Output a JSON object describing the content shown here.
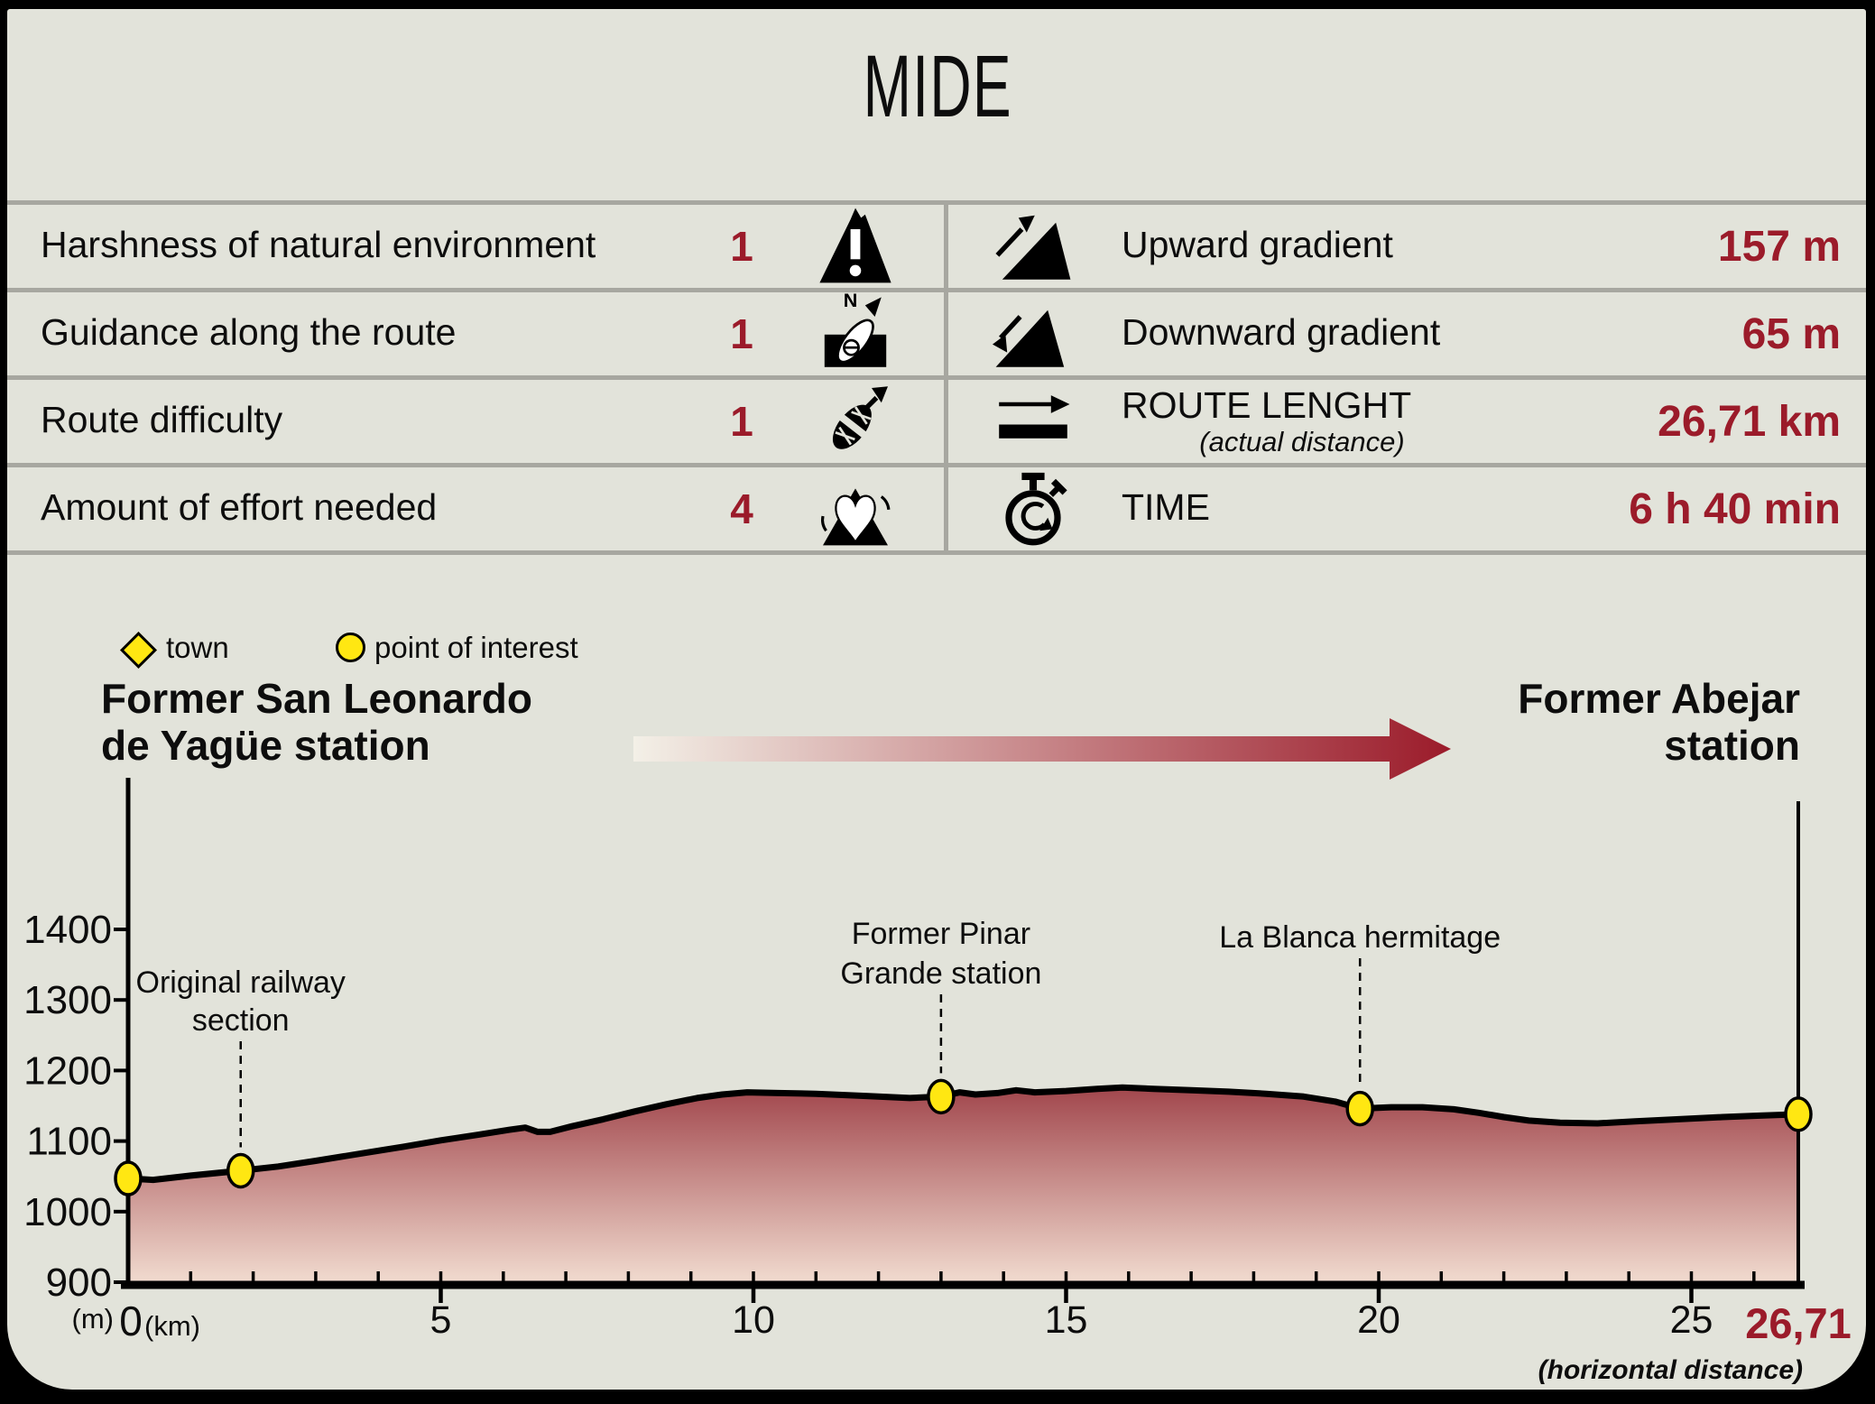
{
  "title": "MIDE",
  "colors": {
    "background": "#e2e3da",
    "accent_red": "#9b1b2a",
    "divider_gray": "#a7a7a0",
    "marker_yellow": "#ffe712",
    "profile_top": "#8b1d28",
    "profile_bottom": "#f2ddd1"
  },
  "table": {
    "left_rows": [
      {
        "label": "Harshness of natural environment",
        "value": "1",
        "icon": "warning-mountain-icon"
      },
      {
        "label": "Guidance along the route",
        "value": "1",
        "icon": "compass-icon"
      },
      {
        "label": "Route difficulty",
        "value": "1",
        "icon": "boot-icon"
      },
      {
        "label": "Amount of effort needed",
        "value": "4",
        "icon": "heart-mountain-icon"
      }
    ],
    "right_rows": [
      {
        "label": "Upward gradient",
        "value": "157 m",
        "icon": "ascending-slope-icon"
      },
      {
        "label": "Downward gradient",
        "value": "65 m",
        "icon": "descending-slope-icon"
      },
      {
        "label": "ROUTE LENGHT",
        "sublabel": "(actual distance)",
        "value": "26,71 km",
        "icon": "route-length-icon"
      },
      {
        "label": "TIME",
        "value": "6 h 40 min",
        "icon": "stopwatch-icon"
      }
    ]
  },
  "legend": {
    "town_label": "town",
    "poi_label": "point of interest"
  },
  "route": {
    "start_line1": "Former San Leonardo",
    "start_line2": "de Yagüe station",
    "end_line1": "Former Abejar",
    "end_line2": "station"
  },
  "chart_data": {
    "type": "area",
    "title": "Elevation profile of route from Former San Leonardo de Yagüe station to Former Abejar station",
    "ylabel_unit": "(m)",
    "xlabel_unit": "(km)",
    "x_origin_label": "0",
    "x_ticks": [
      5,
      10,
      15,
      20,
      25
    ],
    "x_end_label": "26,71",
    "y_ticks": [
      900,
      1000,
      1100,
      1200,
      1300,
      1400
    ],
    "xlim": [
      0,
      26.71
    ],
    "ylim": [
      900,
      1567
    ],
    "grid": false,
    "footnote": "(horizontal distance)",
    "profile": [
      [
        0,
        1047
      ],
      [
        0.4,
        1045
      ],
      [
        1,
        1051
      ],
      [
        1.8,
        1058
      ],
      [
        2.4,
        1064
      ],
      [
        3,
        1072
      ],
      [
        3.7,
        1082
      ],
      [
        4.4,
        1092
      ],
      [
        5,
        1101
      ],
      [
        5.6,
        1109
      ],
      [
        6.1,
        1116
      ],
      [
        6.35,
        1119
      ],
      [
        6.55,
        1113
      ],
      [
        6.75,
        1113
      ],
      [
        7.1,
        1121
      ],
      [
        7.6,
        1131
      ],
      [
        8.1,
        1142
      ],
      [
        8.6,
        1152
      ],
      [
        9.1,
        1161
      ],
      [
        9.5,
        1166
      ],
      [
        9.9,
        1169
      ],
      [
        10.4,
        1168
      ],
      [
        11,
        1167
      ],
      [
        11.8,
        1164
      ],
      [
        12.5,
        1161
      ],
      [
        13,
        1163
      ],
      [
        13.3,
        1169
      ],
      [
        13.55,
        1166
      ],
      [
        13.9,
        1168
      ],
      [
        14.2,
        1172
      ],
      [
        14.5,
        1169
      ],
      [
        15,
        1171
      ],
      [
        15.5,
        1174
      ],
      [
        15.9,
        1176
      ],
      [
        16.4,
        1174
      ],
      [
        17,
        1172
      ],
      [
        17.6,
        1170
      ],
      [
        18.2,
        1167
      ],
      [
        18.8,
        1163
      ],
      [
        19.3,
        1156
      ],
      [
        19.7,
        1146
      ],
      [
        20.2,
        1148
      ],
      [
        20.7,
        1148
      ],
      [
        21.2,
        1145
      ],
      [
        21.6,
        1140
      ],
      [
        22,
        1134
      ],
      [
        22.4,
        1129
      ],
      [
        22.9,
        1126
      ],
      [
        23.5,
        1125
      ],
      [
        24.1,
        1128
      ],
      [
        24.8,
        1131
      ],
      [
        25.5,
        1134
      ],
      [
        26.1,
        1136
      ],
      [
        26.71,
        1138
      ]
    ],
    "markers": [
      {
        "km": 0,
        "elevation": 1047,
        "type": "point_of_interest",
        "name": "start-station-marker"
      },
      {
        "km": 1.8,
        "elevation": 1058,
        "type": "point_of_interest",
        "name": "original-railway-marker",
        "label_lines": [
          "Original railway",
          "section"
        ],
        "label_baselines": [
          1100,
          1142
        ],
        "dash_top": 1154
      },
      {
        "km": 13,
        "elevation": 1163,
        "type": "point_of_interest",
        "name": "pinar-grande-marker",
        "label_lines": [
          "Former Pinar",
          "Grande station"
        ],
        "label_baselines": [
          1046,
          1090
        ],
        "dash_top": 1102
      },
      {
        "km": 19.7,
        "elevation": 1146,
        "type": "point_of_interest",
        "name": "la-blanca-marker",
        "label_lines": [
          "La Blanca hermitage"
        ],
        "label_baselines": [
          1050
        ],
        "dash_top": 1062
      },
      {
        "km": 26.71,
        "elevation": 1138,
        "type": "point_of_interest",
        "name": "end-station-marker"
      }
    ]
  }
}
